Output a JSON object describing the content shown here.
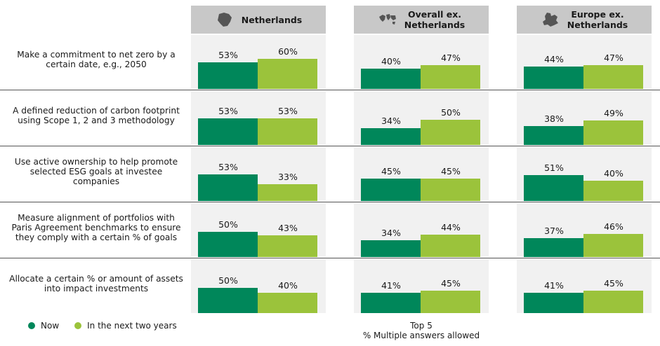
{
  "colors": {
    "now": "#00875a",
    "next": "#9bc33b",
    "panel_bg": "#f1f1f1",
    "header_bg": "#c8c8c8"
  },
  "chart_data": {
    "type": "bar",
    "panels": [
      {
        "title": "Netherlands",
        "icon": "netherlands-map-icon"
      },
      {
        "title": "Overall ex.\nNetherlands",
        "icon": "world-map-icon"
      },
      {
        "title": "Europe ex.\nNetherlands",
        "icon": "europe-map-icon"
      }
    ],
    "categories": [
      "Make a commitment to net zero by a\ncertain date, e.g., 2050",
      "A defined reduction of carbon footprint\nusing Scope 1, 2 and 3 methodology",
      "Use active ownership to help promote\nselected ESG goals at investee\ncompanies",
      "Measure alignment of portfolios with\nParis Agreement benchmarks to ensure\nthey comply with a certain % of goals",
      "Allocate a certain % or amount of assets\ninto impact investments"
    ],
    "series": [
      {
        "name": "Now",
        "values": [
          [
            53,
            53,
            53,
            50,
            50
          ],
          [
            40,
            34,
            45,
            34,
            41
          ],
          [
            44,
            38,
            51,
            37,
            41
          ]
        ]
      },
      {
        "name": "In the next two years",
        "values": [
          [
            60,
            53,
            33,
            43,
            40
          ],
          [
            47,
            50,
            45,
            44,
            45
          ],
          [
            47,
            49,
            40,
            46,
            45
          ]
        ]
      }
    ],
    "value_suffix": "%",
    "ylim": [
      0,
      100
    ]
  },
  "footnote": {
    "line1": "Top 5",
    "line2": "% Multiple answers allowed"
  }
}
